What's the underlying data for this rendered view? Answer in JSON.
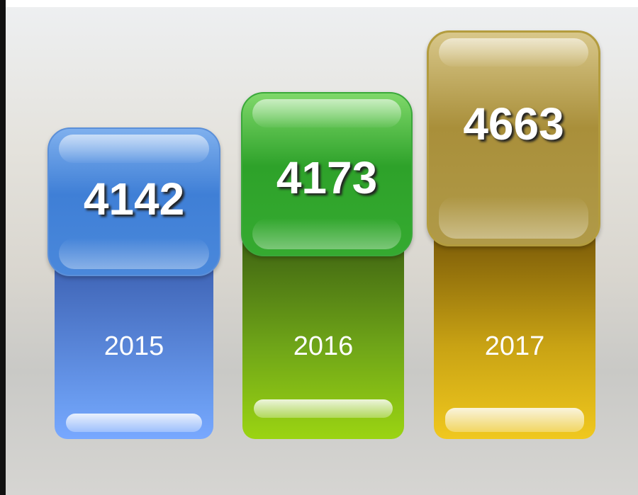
{
  "columns": [
    {
      "value": 4142,
      "year": "2015"
    },
    {
      "value": 4173,
      "year": "2016"
    },
    {
      "value": 4663,
      "year": "2017"
    }
  ]
}
